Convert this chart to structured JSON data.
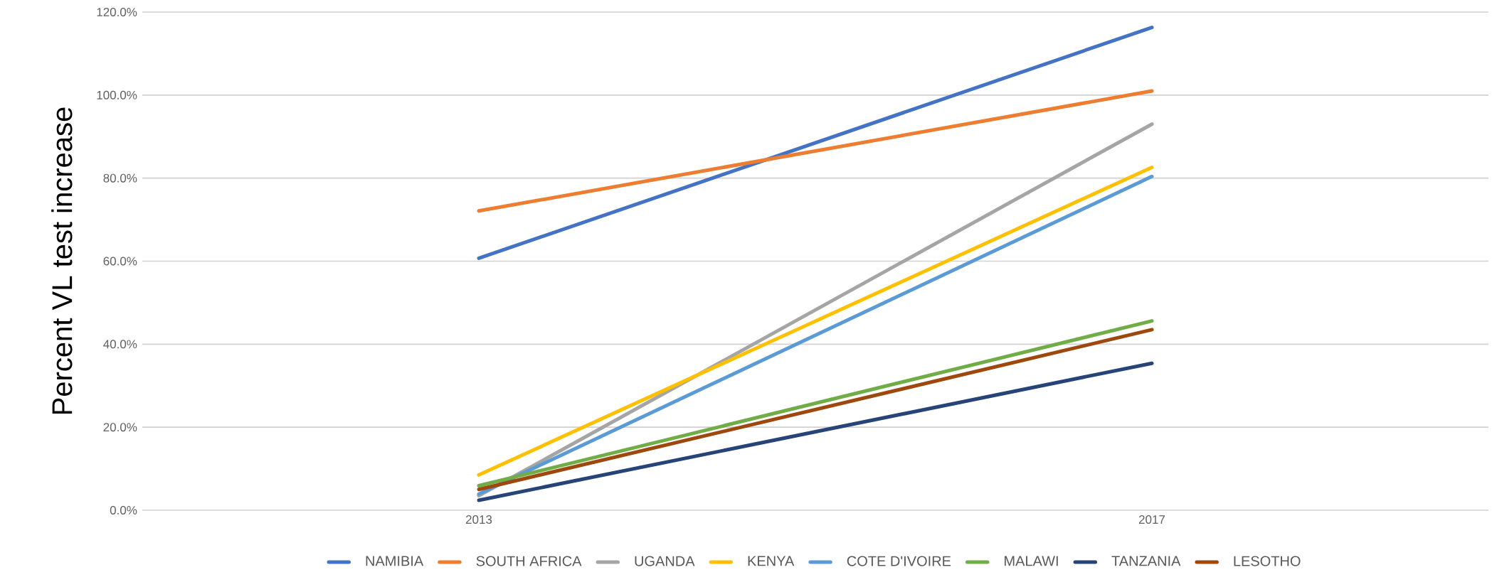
{
  "chart_data": {
    "type": "line",
    "ylabel": "Percent VL test increase",
    "categories": [
      "2013",
      "2017"
    ],
    "series": [
      {
        "name": "NAMIBIA",
        "color": "#4472c4",
        "values": [
          60.7,
          116.3
        ]
      },
      {
        "name": "SOUTH AFRICA",
        "color": "#ed7d31",
        "values": [
          72.1,
          101.0
        ]
      },
      {
        "name": "UGANDA",
        "color": "#a5a5a5",
        "values": [
          3.5,
          93.0
        ]
      },
      {
        "name": "KENYA",
        "color": "#ffc000",
        "values": [
          8.5,
          82.6
        ]
      },
      {
        "name": "COTE D'IVOIRE",
        "color": "#5b9bd5",
        "values": [
          3.9,
          80.4
        ]
      },
      {
        "name": "MALAWI",
        "color": "#70ad47",
        "values": [
          5.9,
          45.6
        ]
      },
      {
        "name": "TANZANIA",
        "color": "#264478",
        "values": [
          2.4,
          35.4
        ]
      },
      {
        "name": "LESOTHO",
        "color": "#9e480e",
        "values": [
          5.0,
          43.5
        ]
      }
    ],
    "ylim": [
      0,
      120
    ],
    "yticks": [
      {
        "value": 0,
        "label": "0.0%"
      },
      {
        "value": 20,
        "label": "20.0%"
      },
      {
        "value": 40,
        "label": "40.0%"
      },
      {
        "value": 60,
        "label": "60.0%"
      },
      {
        "value": 80,
        "label": "80.0%"
      },
      {
        "value": 100,
        "label": "100.0%"
      },
      {
        "value": 120,
        "label": "120.0%"
      }
    ],
    "grid": "y",
    "legend": "bottom",
    "marker": "none",
    "line_style": "solid"
  }
}
